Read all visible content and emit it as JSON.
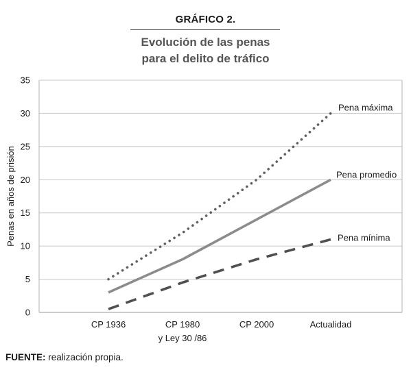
{
  "figure": {
    "label": "GRÁFICO 2.",
    "title_line1": "Evolución de las penas",
    "title_line2": "para el delito de tráfico"
  },
  "source": {
    "prefix": "FUENTE:",
    "text": " realización propia."
  },
  "chart_data": {
    "type": "line",
    "title": "Evolución de las penas para el delito de tráfico",
    "xlabel": "",
    "ylabel": "Penas en años de prisión",
    "ylim": [
      0,
      35
    ],
    "yticks": [
      0,
      5,
      10,
      15,
      20,
      25,
      30,
      35
    ],
    "grid": "horizontal",
    "categories": [
      [
        "CP 1936"
      ],
      [
        "CP 1980",
        "y Ley 30 /86"
      ],
      [
        "CP 2000"
      ],
      [
        "Actualidad"
      ]
    ],
    "series": [
      {
        "name": "Pena máxima",
        "values": [
          5,
          12,
          20,
          30
        ],
        "style": "dotted",
        "color": "#606060"
      },
      {
        "name": "Pena promedio",
        "values": [
          3,
          8,
          14,
          20
        ],
        "style": "solid",
        "color": "#8c8c8c"
      },
      {
        "name": "Pena mínima",
        "values": [
          0.5,
          4.5,
          8,
          11
        ],
        "style": "dashed",
        "color": "#505050"
      }
    ]
  }
}
